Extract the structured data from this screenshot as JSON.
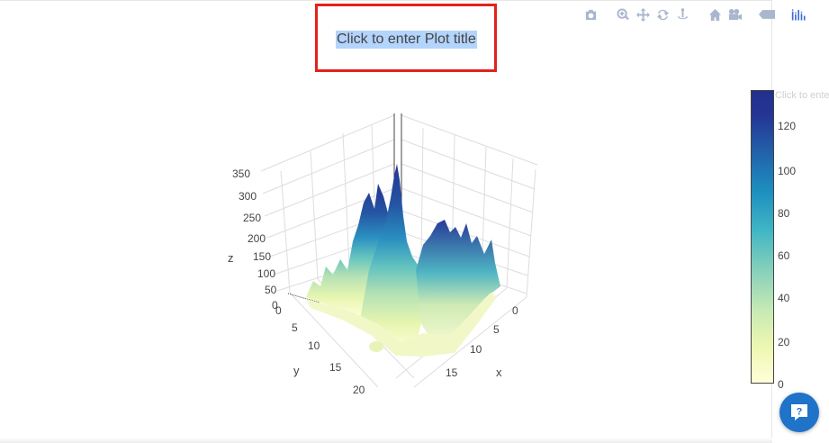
{
  "title": {
    "text": "Click to enter Plot title"
  },
  "colorbar_title": "Click to enter",
  "chart_data": {
    "type": "surface",
    "title": "Click to enter Plot title",
    "xlabel": "x",
    "ylabel": "y",
    "zlabel": "z",
    "x_ticks": [
      "0",
      "5",
      "10",
      "15"
    ],
    "y_ticks": [
      "0",
      "5",
      "10",
      "15",
      "20"
    ],
    "z_ticks": [
      "0",
      "50",
      "100",
      "150",
      "200",
      "250",
      "300",
      "350"
    ],
    "zlim": [
      0,
      350
    ],
    "colorscale": "YlGnBu",
    "colorbar_ticks": [
      "0",
      "20",
      "40",
      "60",
      "80",
      "100",
      "120"
    ],
    "colorbar_range": [
      0,
      130
    ],
    "grid": true
  },
  "modebar": {
    "icons": [
      "camera-icon",
      "zoom-icon",
      "pan-icon",
      "orbit-icon",
      "turntable-icon",
      "home-icon",
      "camera-view-icon",
      "hover-toggle-icon",
      "plotly-logo-icon"
    ]
  },
  "colors": {
    "highlight": "#e3221b",
    "help": "#1f73c8"
  }
}
